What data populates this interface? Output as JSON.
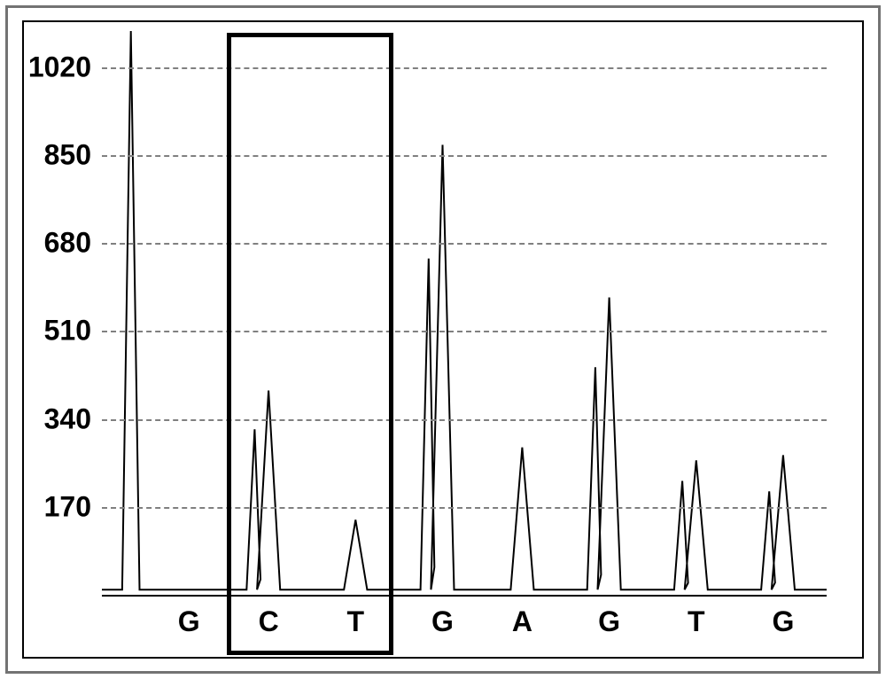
{
  "chart": {
    "type": "pyrogram",
    "background_color": "#ffffff",
    "frame_color": "#737373",
    "axis_color": "#000000",
    "grid_color": "#808080",
    "grid_dash": "6 8",
    "line_color": "#000000",
    "line_width": 2,
    "font_family": "Arial",
    "tick_fontsize": 32,
    "tick_fontweight": "bold",
    "ylim": [
      0,
      1090
    ],
    "yticks": [
      0,
      170,
      340,
      510,
      680,
      850,
      1020
    ],
    "ytick_labels": [
      "0",
      "170",
      "340",
      "510",
      "680",
      "850",
      "1020"
    ],
    "ytick_show_zero": false,
    "xlim": [
      0,
      100
    ],
    "initial_spike_x": 4,
    "initial_spike_height": 1090,
    "x_positions": [
      12,
      23,
      35,
      47,
      58,
      70,
      82,
      94
    ],
    "x_labels": [
      "G",
      "C",
      "T",
      "G",
      "A",
      "G",
      "T",
      "G"
    ],
    "peak_heights": [
      0,
      395,
      145,
      870,
      285,
      575,
      260,
      270
    ],
    "pre_peak_heights": [
      0,
      320,
      0,
      650,
      0,
      440,
      220,
      200
    ],
    "peak_half_width": 1.6,
    "baseline": 10,
    "highlight_box": {
      "x_start": 17,
      "x_end": 40,
      "y_start": -90,
      "y_end": 1090
    }
  }
}
